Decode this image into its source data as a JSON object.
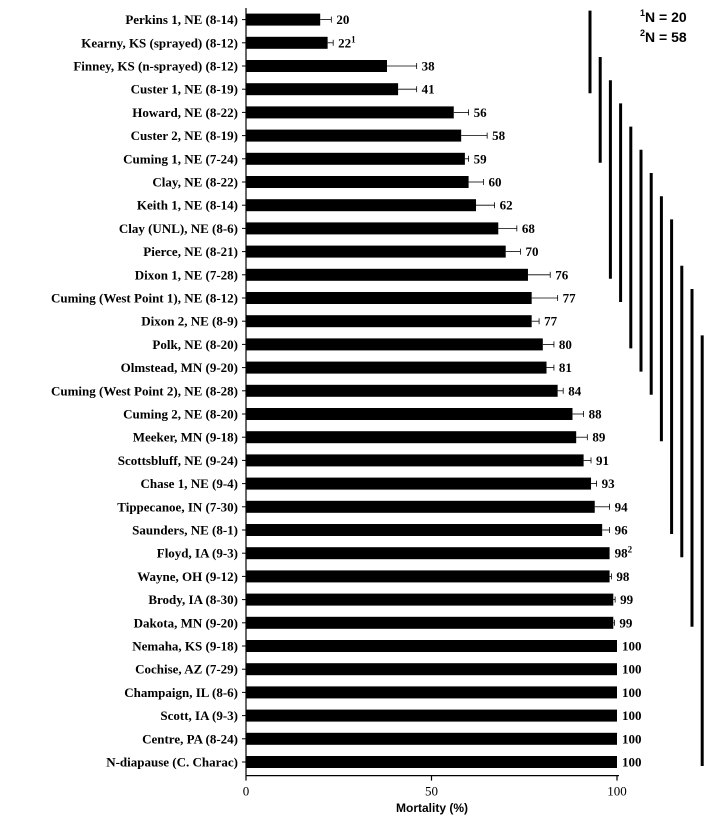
{
  "chart_data": {
    "type": "bar",
    "orientation": "horizontal",
    "xlabel": "Mortality (%)",
    "xlim": [
      0,
      100
    ],
    "xticks": [
      0,
      50,
      100
    ],
    "categories": [
      "Perkins 1, NE (8-14)",
      "Kearny, KS (sprayed) (8-12)",
      "Finney, KS (n-sprayed) (8-12)",
      "Custer 1, NE (8-19)",
      "Howard, NE (8-22)",
      "Custer 2, NE (8-19)",
      "Cuming 1, NE (7-24)",
      "Clay, NE (8-22)",
      "Keith 1, NE (8-14)",
      "Clay (UNL), NE (8-6)",
      "Pierce, NE (8-21)",
      "Dixon 1, NE (7-28)",
      "Cuming (West Point 1), NE (8-12)",
      "Dixon 2, NE (8-9)",
      "Polk, NE (8-20)",
      "Olmstead, MN (9-20)",
      "Cuming (West Point 2), NE (8-28)",
      "Cuming 2, NE (8-20)",
      "Meeker, MN (9-18)",
      "Scottsbluff, NE (9-24)",
      "Chase 1, NE (9-4)",
      "Tippecanoe, IN (7-30)",
      "Saunders, NE (8-1)",
      "Floyd, IA (9-3)",
      "Wayne, OH (9-12)",
      "Brody, IA (8-30)",
      "Dakota, MN (9-20)",
      "Nemaha, KS (9-18)",
      "Cochise, AZ (7-29)",
      "Champaign, IL (8-6)",
      "Scott, IA (9-3)",
      "Centre, PA (8-24)",
      "N-diapause (C. Charac)"
    ],
    "values": [
      20,
      22,
      38,
      41,
      56,
      58,
      59,
      60,
      62,
      68,
      70,
      76,
      77,
      77,
      80,
      81,
      84,
      88,
      89,
      91,
      93,
      94,
      96,
      98,
      98,
      99,
      99,
      100,
      100,
      100,
      100,
      100,
      100
    ],
    "errors": [
      3,
      1.5,
      8,
      5,
      4,
      7,
      1,
      4,
      5,
      5,
      4,
      6,
      7,
      2,
      3,
      2,
      1.5,
      3,
      3,
      2,
      1.5,
      4,
      2,
      0,
      0.5,
      0.5,
      0.3,
      0,
      0,
      0,
      0,
      0,
      0
    ],
    "value_labels": [
      "20",
      "22",
      "38",
      "41",
      "56",
      "58",
      "59",
      "60",
      "62",
      "68",
      "70",
      "76",
      "77",
      "77",
      "80",
      "81",
      "84",
      "88",
      "89",
      "91",
      "93",
      "94",
      "96",
      "98",
      "98",
      "99",
      "99",
      "100",
      "100",
      "100",
      "100",
      "100",
      "100"
    ],
    "value_superscripts": {
      "1": "1",
      "23": "2"
    },
    "bar_color": "#000000",
    "grouping_lines": [
      [
        0,
        3
      ],
      [
        2,
        6
      ],
      [
        3,
        11
      ],
      [
        4,
        12
      ],
      [
        5,
        14
      ],
      [
        6,
        15
      ],
      [
        7,
        16
      ],
      [
        8,
        18
      ],
      [
        9,
        22
      ],
      [
        11,
        23
      ],
      [
        12,
        26
      ],
      [
        14,
        32
      ]
    ],
    "notes": [
      {
        "sup": "1",
        "text": "N = 20"
      },
      {
        "sup": "2",
        "text": "N = 58"
      }
    ]
  }
}
